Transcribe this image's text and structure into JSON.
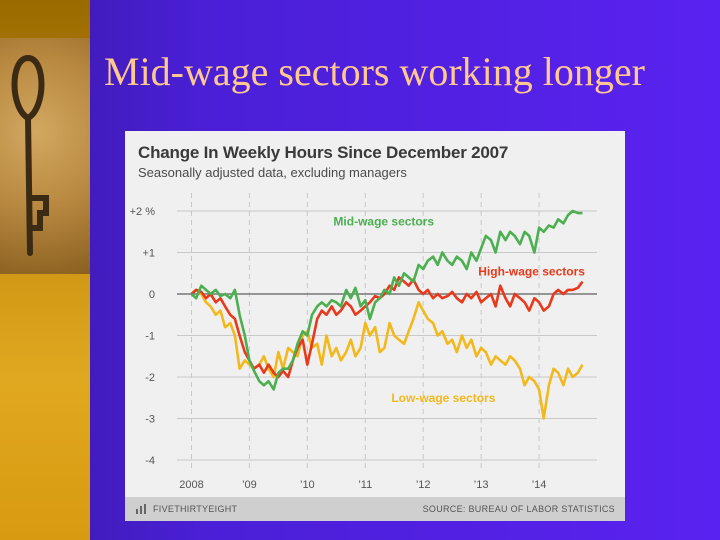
{
  "slide": {
    "title": "Mid-wage sectors working longer"
  },
  "colors": {
    "background": "#4a1fd6",
    "title_text": "#ffc890",
    "mid": "#4caf50",
    "high": "#e8391c",
    "low": "#f2b81c",
    "zero_line": "#777777",
    "grid": "#c8c8c8"
  },
  "icons": [
    "key-image",
    "fivethirtyeight-logo-icon"
  ],
  "chart_data": {
    "type": "line",
    "title": "Change In Weekly Hours Since December 2007",
    "subtitle": "Seasonally adjusted data, excluding managers",
    "ylim": [
      -4,
      2
    ],
    "xlim": [
      2007.75,
      2015.0
    ],
    "yticks": [
      {
        "value": 2,
        "label": "+2 %"
      },
      {
        "value": 1,
        "label": "+1"
      },
      {
        "value": 0,
        "label": "0"
      },
      {
        "value": -1,
        "label": "-1"
      },
      {
        "value": -2,
        "label": "-2"
      },
      {
        "value": -3,
        "label": "-3"
      },
      {
        "value": -4,
        "label": "-4"
      }
    ],
    "xticks": [
      {
        "value": 2008,
        "label": "2008"
      },
      {
        "value": 2009,
        "label": "’09"
      },
      {
        "value": 2010,
        "label": "’10"
      },
      {
        "value": 2011,
        "label": "’11"
      },
      {
        "value": 2012,
        "label": "’12"
      },
      {
        "value": 2013,
        "label": "’13"
      },
      {
        "value": 2014,
        "label": "’14"
      }
    ],
    "grid": true,
    "series": [
      {
        "name": "Mid-wage sectors",
        "color_key": "mid",
        "x": [
          2008.0,
          2008.08,
          2008.17,
          2008.25,
          2008.33,
          2008.42,
          2008.5,
          2008.58,
          2008.67,
          2008.75,
          2008.83,
          2008.92,
          2009.0,
          2009.08,
          2009.17,
          2009.25,
          2009.33,
          2009.42,
          2009.5,
          2009.58,
          2009.67,
          2009.75,
          2009.83,
          2009.92,
          2010.0,
          2010.08,
          2010.17,
          2010.25,
          2010.33,
          2010.42,
          2010.5,
          2010.58,
          2010.67,
          2010.75,
          2010.83,
          2010.92,
          2011.0,
          2011.08,
          2011.17,
          2011.25,
          2011.33,
          2011.42,
          2011.5,
          2011.58,
          2011.67,
          2011.75,
          2011.83,
          2011.92,
          2012.0,
          2012.08,
          2012.17,
          2012.25,
          2012.33,
          2012.42,
          2012.5,
          2012.58,
          2012.67,
          2012.75,
          2012.83,
          2012.92,
          2013.0,
          2013.08,
          2013.17,
          2013.25,
          2013.33,
          2013.42,
          2013.5,
          2013.58,
          2013.67,
          2013.75,
          2013.83,
          2013.92,
          2014.0,
          2014.08,
          2014.17,
          2014.25,
          2014.33,
          2014.42,
          2014.5,
          2014.58,
          2014.67,
          2014.75
        ],
        "values": [
          0.0,
          -0.1,
          0.2,
          0.1,
          0.0,
          0.1,
          -0.05,
          0.0,
          -0.1,
          0.1,
          -0.5,
          -1.0,
          -1.6,
          -1.85,
          -2.1,
          -2.2,
          -2.1,
          -2.3,
          -1.9,
          -1.8,
          -1.8,
          -1.6,
          -1.2,
          -0.9,
          -1.0,
          -0.5,
          -0.3,
          -0.2,
          -0.3,
          -0.15,
          -0.2,
          -0.3,
          0.1,
          -0.1,
          0.15,
          -0.3,
          -0.15,
          -0.6,
          -0.2,
          -0.1,
          0.1,
          0.0,
          0.4,
          0.2,
          0.5,
          0.4,
          0.3,
          0.7,
          0.6,
          0.8,
          0.9,
          0.7,
          1.0,
          0.8,
          0.7,
          0.9,
          0.8,
          0.6,
          1.0,
          0.8,
          1.1,
          1.4,
          1.3,
          1.0,
          1.5,
          1.3,
          1.5,
          1.4,
          1.2,
          1.5,
          1.4,
          1.0,
          1.6,
          1.5,
          1.65,
          1.6,
          1.8,
          1.7,
          1.9,
          2.0,
          1.95,
          1.95
        ]
      },
      {
        "name": "High-wage sectors",
        "color_key": "high",
        "x": [
          2008.0,
          2008.08,
          2008.17,
          2008.25,
          2008.33,
          2008.42,
          2008.5,
          2008.58,
          2008.67,
          2008.75,
          2008.83,
          2008.92,
          2009.0,
          2009.08,
          2009.17,
          2009.25,
          2009.33,
          2009.42,
          2009.5,
          2009.58,
          2009.67,
          2009.75,
          2009.83,
          2009.92,
          2010.0,
          2010.08,
          2010.17,
          2010.25,
          2010.33,
          2010.42,
          2010.5,
          2010.58,
          2010.67,
          2010.75,
          2010.83,
          2010.92,
          2011.0,
          2011.08,
          2011.17,
          2011.25,
          2011.33,
          2011.42,
          2011.5,
          2011.58,
          2011.67,
          2011.75,
          2011.83,
          2011.92,
          2012.0,
          2012.08,
          2012.17,
          2012.25,
          2012.33,
          2012.42,
          2012.5,
          2012.58,
          2012.67,
          2012.75,
          2012.83,
          2012.92,
          2013.0,
          2013.08,
          2013.17,
          2013.25,
          2013.33,
          2013.42,
          2013.5,
          2013.58,
          2013.67,
          2013.75,
          2013.83,
          2013.92,
          2014.0,
          2014.08,
          2014.17,
          2014.25,
          2014.33,
          2014.42,
          2014.5,
          2014.58,
          2014.67,
          2014.75
        ],
        "values": [
          0.0,
          0.1,
          0.05,
          -0.1,
          0.0,
          -0.2,
          -0.1,
          -0.3,
          -0.5,
          -0.6,
          -1.0,
          -1.4,
          -1.6,
          -1.8,
          -1.7,
          -1.9,
          -1.7,
          -1.9,
          -2.0,
          -1.85,
          -2.0,
          -1.6,
          -1.3,
          -1.1,
          -1.7,
          -1.2,
          -0.6,
          -0.4,
          -0.5,
          -0.3,
          -0.5,
          -0.4,
          -0.2,
          -0.3,
          -0.5,
          -0.4,
          -0.3,
          -0.2,
          -0.05,
          -0.1,
          0.0,
          0.2,
          0.1,
          0.4,
          0.3,
          0.2,
          0.35,
          0.1,
          0.0,
          0.1,
          -0.1,
          0.0,
          -0.1,
          -0.05,
          0.05,
          -0.1,
          -0.2,
          0.0,
          -0.1,
          0.05,
          -0.2,
          -0.1,
          0.0,
          -0.3,
          0.2,
          -0.1,
          -0.3,
          0.0,
          -0.1,
          -0.2,
          -0.4,
          -0.1,
          -0.2,
          -0.4,
          -0.3,
          0.0,
          0.1,
          0.0,
          0.1,
          0.1,
          0.15,
          0.3
        ]
      },
      {
        "name": "Low-wage sectors",
        "color_key": "low",
        "x": [
          2008.0,
          2008.08,
          2008.17,
          2008.25,
          2008.33,
          2008.42,
          2008.5,
          2008.58,
          2008.67,
          2008.75,
          2008.83,
          2008.92,
          2009.0,
          2009.08,
          2009.17,
          2009.25,
          2009.33,
          2009.42,
          2009.5,
          2009.58,
          2009.67,
          2009.75,
          2009.83,
          2009.92,
          2010.0,
          2010.08,
          2010.17,
          2010.25,
          2010.33,
          2010.42,
          2010.5,
          2010.58,
          2010.67,
          2010.75,
          2010.83,
          2010.92,
          2011.0,
          2011.08,
          2011.17,
          2011.25,
          2011.33,
          2011.42,
          2011.5,
          2011.58,
          2011.67,
          2011.75,
          2011.83,
          2011.92,
          2012.0,
          2012.08,
          2012.17,
          2012.25,
          2012.33,
          2012.42,
          2012.5,
          2012.58,
          2012.67,
          2012.75,
          2012.83,
          2012.92,
          2013.0,
          2013.08,
          2013.17,
          2013.25,
          2013.33,
          2013.42,
          2013.5,
          2013.58,
          2013.67,
          2013.75,
          2013.83,
          2013.92,
          2014.0,
          2014.08,
          2014.17,
          2014.25,
          2014.33,
          2014.42,
          2014.5,
          2014.58,
          2014.67,
          2014.75
        ],
        "values": [
          0.0,
          0.1,
          0.0,
          -0.2,
          -0.3,
          -0.5,
          -0.4,
          -0.8,
          -0.7,
          -1.0,
          -1.8,
          -1.6,
          -1.7,
          -1.8,
          -1.7,
          -1.5,
          -1.8,
          -2.0,
          -1.4,
          -1.8,
          -1.3,
          -1.4,
          -1.5,
          -1.0,
          -0.9,
          -1.3,
          -1.2,
          -1.7,
          -1.0,
          -1.5,
          -1.3,
          -1.6,
          -1.4,
          -1.1,
          -1.5,
          -1.3,
          -0.7,
          -1.0,
          -0.8,
          -1.4,
          -1.3,
          -0.7,
          -1.0,
          -1.1,
          -1.2,
          -0.9,
          -0.6,
          -0.2,
          -0.4,
          -0.6,
          -0.7,
          -1.0,
          -0.9,
          -1.2,
          -1.1,
          -1.4,
          -1.0,
          -1.3,
          -1.1,
          -1.5,
          -1.3,
          -1.4,
          -1.7,
          -1.5,
          -1.6,
          -1.7,
          -1.5,
          -1.6,
          -1.8,
          -2.2,
          -2.0,
          -2.1,
          -2.3,
          -3.0,
          -2.2,
          -1.8,
          -1.9,
          -2.2,
          -1.8,
          -2.0,
          -1.9,
          -1.7
        ]
      }
    ],
    "series_labels": [
      {
        "text": "Mid-wage sectors",
        "color_key": "mid",
        "at": [
          2010.45,
          1.65
        ]
      },
      {
        "text": "High-wage sectors",
        "color_key": "high",
        "at": [
          2012.95,
          0.45
        ]
      },
      {
        "text": "Low-wage sectors",
        "color_key": "low",
        "at": [
          2011.45,
          -2.6
        ]
      }
    ],
    "footer": {
      "brand": "FIVETHIRTYEIGHT",
      "source": "SOURCE: BUREAU OF LABOR STATISTICS"
    }
  }
}
